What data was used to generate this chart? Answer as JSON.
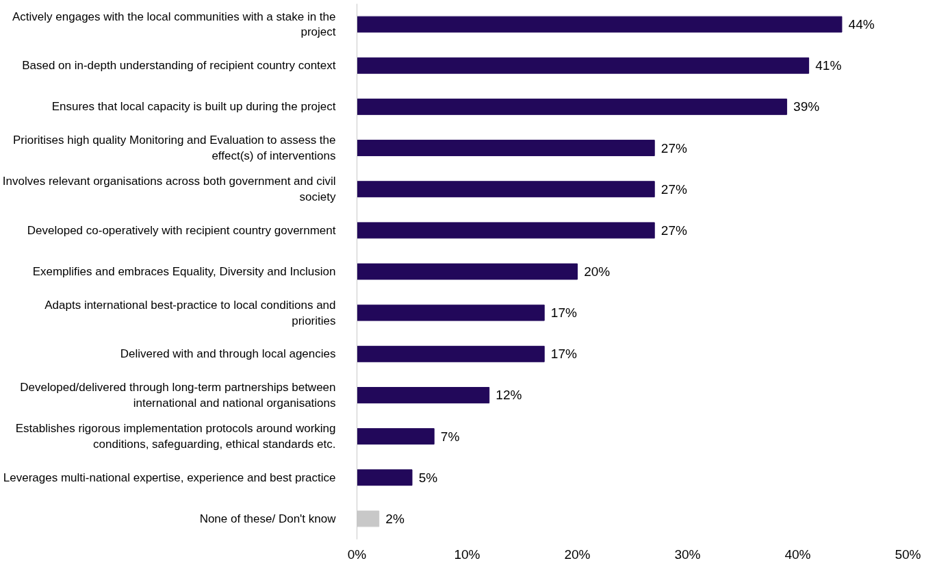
{
  "chart_data": {
    "type": "bar",
    "orientation": "horizontal",
    "categories": [
      "Actively engages with the local communities with a stake in the project",
      "Based on in-depth understanding of recipient country context",
      "Ensures that local capacity is built up during the project",
      "Prioritises high quality Monitoring and Evaluation to assess the effect(s) of interventions",
      "Involves relevant organisations across both government and civil society",
      "Developed co-operatively with recipient country government",
      "Exemplifies and embraces Equality, Diversity and Inclusion",
      "Adapts international best-practice to local conditions and priorities",
      "Delivered with and through local agencies",
      "Developed/delivered through long-term partnerships between international and national organisations",
      "Establishes rigorous implementation protocols around working conditions, safeguarding, ethical standards etc.",
      "Leverages multi-national expertise, experience and best practice",
      "None of these/ Don't know"
    ],
    "values": [
      44,
      41,
      39,
      27,
      27,
      27,
      20,
      17,
      17,
      12,
      7,
      5,
      2
    ],
    "value_labels": [
      "44%",
      "41%",
      "39%",
      "27%",
      "27%",
      "27%",
      "20%",
      "17%",
      "17%",
      "12%",
      "7%",
      "5%",
      "2%"
    ],
    "colors": [
      "#22085a",
      "#22085a",
      "#22085a",
      "#22085a",
      "#22085a",
      "#22085a",
      "#22085a",
      "#22085a",
      "#22085a",
      "#22085a",
      "#22085a",
      "#22085a",
      "#c8c8c8"
    ],
    "xlim": [
      0,
      50
    ],
    "xticks": [
      {
        "value": 0,
        "label": "0%"
      },
      {
        "value": 10,
        "label": "10%"
      },
      {
        "value": 20,
        "label": "20%"
      },
      {
        "value": 30,
        "label": "30%"
      },
      {
        "value": 40,
        "label": "40%"
      },
      {
        "value": 50,
        "label": "50%"
      }
    ],
    "grid": false
  }
}
